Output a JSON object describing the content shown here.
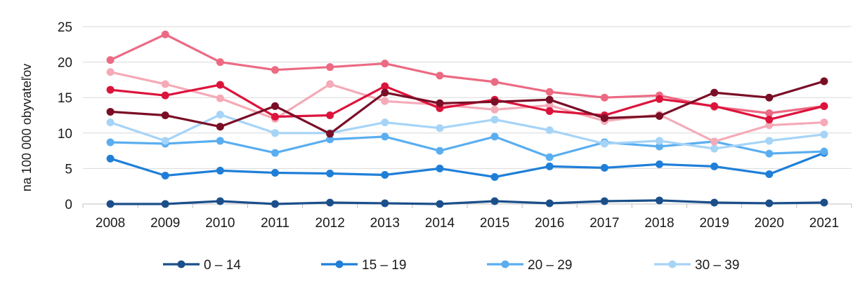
{
  "chart_data": {
    "type": "line",
    "title": "",
    "xlabel": "",
    "ylabel": "na 100 000 obyvateľov",
    "ylim": [
      0,
      25
    ],
    "yticks": [
      "0",
      "5",
      "10",
      "15",
      "20",
      "25"
    ],
    "grid": "horizontal",
    "legend_position": "bottom",
    "categories": [
      "2008",
      "2009",
      "2010",
      "2011",
      "2012",
      "2013",
      "2014",
      "2015",
      "2016",
      "2017",
      "2018",
      "2019",
      "2020",
      "2021"
    ],
    "series": [
      {
        "name": "0 – 14",
        "color": "#1b4f8a",
        "values": [
          0.0,
          0.0,
          0.4,
          0.0,
          0.2,
          0.1,
          0.0,
          0.4,
          0.1,
          0.4,
          0.5,
          0.2,
          0.1,
          0.2
        ],
        "legend": true
      },
      {
        "name": "15 – 19",
        "color": "#1f7fd8",
        "values": [
          6.4,
          4.0,
          4.7,
          4.4,
          4.3,
          4.1,
          5.0,
          3.8,
          5.3,
          5.1,
          5.6,
          5.3,
          4.2,
          7.2
        ],
        "legend": true
      },
      {
        "name": "20 – 29",
        "color": "#5aaef0",
        "values": [
          8.7,
          8.5,
          8.9,
          7.2,
          9.1,
          9.5,
          7.5,
          9.5,
          6.6,
          8.7,
          8.1,
          8.8,
          7.1,
          7.4
        ],
        "legend": true
      },
      {
        "name": "30 – 39",
        "color": "#a6d4f7",
        "values": [
          11.5,
          8.9,
          12.6,
          10.0,
          10.0,
          11.5,
          10.7,
          11.9,
          10.4,
          8.5,
          8.9,
          7.8,
          8.9,
          9.8
        ],
        "legend": true
      },
      {
        "name": "",
        "color": "#f5aab7",
        "values": [
          18.6,
          16.9,
          14.9,
          12.0,
          16.9,
          14.5,
          14.0,
          13.3,
          13.9,
          11.7,
          12.6,
          8.8,
          11.1,
          11.5
        ],
        "legend": false
      },
      {
        "name": "",
        "color": "#ec6a83",
        "values": [
          20.3,
          23.9,
          20.0,
          18.9,
          19.3,
          19.8,
          18.1,
          17.2,
          15.8,
          15.0,
          15.3,
          13.7,
          12.8,
          13.8
        ],
        "legend": false
      },
      {
        "name": "",
        "color": "#dc143c",
        "values": [
          16.1,
          15.3,
          16.8,
          12.3,
          12.5,
          16.6,
          13.5,
          14.7,
          13.1,
          12.5,
          14.8,
          13.8,
          11.9,
          13.8
        ],
        "legend": false
      },
      {
        "name": "",
        "color": "#7a0e26",
        "values": [
          13.0,
          12.5,
          10.9,
          13.8,
          9.9,
          15.7,
          14.2,
          14.4,
          14.7,
          12.1,
          12.4,
          15.7,
          15.0,
          17.3
        ],
        "legend": false
      }
    ]
  }
}
